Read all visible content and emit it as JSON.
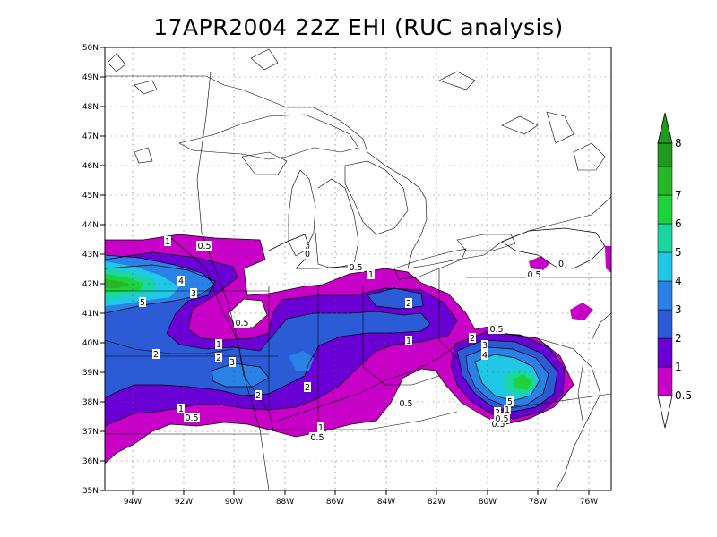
{
  "title": "17APR2004 22Z EHI (RUC analysis)",
  "lat_ticks": [
    "50N",
    "49N",
    "48N",
    "47N",
    "46N",
    "45N",
    "44N",
    "43N",
    "42N",
    "41N",
    "40N",
    "39N",
    "38N",
    "37N",
    "36N",
    "35N"
  ],
  "lon_ticks": [
    "94W",
    "92W",
    "90W",
    "88W",
    "86W",
    "84W",
    "82W",
    "80W",
    "78W",
    "76W"
  ],
  "colorbar": {
    "levels": [
      "0.5",
      "1",
      "2",
      "3",
      "4",
      "5",
      "6",
      "7",
      "8"
    ],
    "colors": [
      "#ffffff",
      "#c800c8",
      "#6a00d6",
      "#2c5bd8",
      "#2a82e8",
      "#1ec8e6",
      "#1ad6a0",
      "#1ed23c",
      "#27b827",
      "#1e9a1e"
    ]
  },
  "contour_labels": [
    {
      "text": "1"
    },
    {
      "text": "0.5"
    },
    {
      "text": "0"
    },
    {
      "text": "0.5"
    },
    {
      "text": "1"
    },
    {
      "text": "4"
    },
    {
      "text": "3"
    },
    {
      "text": "5"
    },
    {
      "text": "0.5"
    },
    {
      "text": "1"
    },
    {
      "text": "2"
    },
    {
      "text": "3"
    },
    {
      "text": "2"
    },
    {
      "text": "2"
    },
    {
      "text": "2"
    },
    {
      "text": "1"
    },
    {
      "text": "0.5"
    },
    {
      "text": "1"
    },
    {
      "text": "0.5"
    },
    {
      "text": "2"
    },
    {
      "text": "1"
    },
    {
      "text": "2"
    },
    {
      "text": "0.5"
    },
    {
      "text": "3"
    },
    {
      "text": "4"
    },
    {
      "text": "5"
    },
    {
      "text": "2"
    },
    {
      "text": "0.5"
    },
    {
      "text": "0.5"
    },
    {
      "text": "0.5"
    },
    {
      "text": "0"
    },
    {
      "text": "1"
    },
    {
      "text": "0.5"
    }
  ]
}
